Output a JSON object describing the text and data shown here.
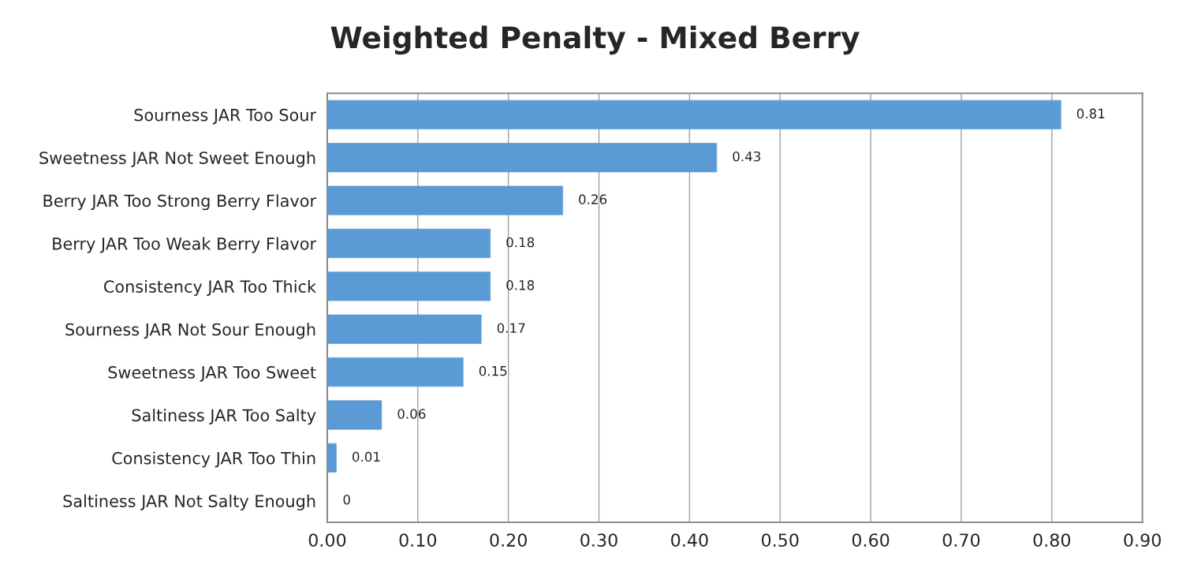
{
  "chart_data": {
    "type": "bar",
    "orientation": "horizontal",
    "title": "Weighted Penalty - Mixed Berry",
    "categories": [
      "Sourness JAR Too Sour",
      "Sweetness JAR Not Sweet Enough",
      "Berry JAR Too Strong Berry Flavor",
      "Berry JAR Too Weak Berry Flavor",
      "Consistency JAR Too Thick",
      "Sourness JAR Not Sour Enough",
      "Sweetness JAR Too Sweet",
      "Saltiness JAR Too Salty",
      "Consistency JAR Too Thin",
      "Saltiness JAR Not Salty Enough"
    ],
    "values": [
      0.81,
      0.43,
      0.26,
      0.18,
      0.18,
      0.17,
      0.15,
      0.06,
      0.01,
      0
    ],
    "color": "#5b9bd5",
    "xlim": [
      0,
      0.9
    ],
    "xticks": [
      {
        "value": 0,
        "label": "0.00"
      },
      {
        "value": 0.1,
        "label": "0.10"
      },
      {
        "value": 0.2,
        "label": "0.20"
      },
      {
        "value": 0.3,
        "label": "0.30"
      },
      {
        "value": 0.4,
        "label": "0.40"
      },
      {
        "value": 0.5,
        "label": "0.50"
      },
      {
        "value": 0.6,
        "label": "0.60"
      },
      {
        "value": 0.7,
        "label": "0.70"
      },
      {
        "value": 0.8,
        "label": "0.80"
      },
      {
        "value": 0.9,
        "label": "0.90"
      }
    ],
    "grid": "x",
    "data_labels": true
  }
}
